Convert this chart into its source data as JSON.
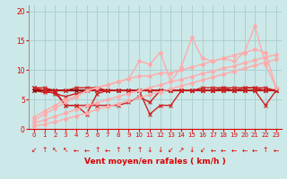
{
  "xlabel": "Vent moyen/en rafales ( km/h )",
  "background_color": "#cce8e8",
  "grid_color": "#aacccc",
  "text_color": "#dd0000",
  "x_values": [
    0,
    1,
    2,
    3,
    4,
    5,
    6,
    7,
    8,
    9,
    10,
    11,
    12,
    13,
    14,
    15,
    16,
    17,
    18,
    19,
    20,
    21,
    22,
    23
  ],
  "series": [
    {
      "y": [
        7.0,
        7.0,
        6.5,
        4.0,
        4.0,
        2.5,
        6.0,
        6.5,
        6.5,
        6.5,
        6.5,
        2.5,
        4.0,
        4.0,
        6.5,
        6.5,
        6.5,
        6.5,
        7.0,
        6.5,
        7.0,
        7.0,
        7.0,
        6.5
      ],
      "color": "#cc2222",
      "lw": 1.0,
      "marker": "x",
      "ms": 2.5
    },
    {
      "y": [
        6.5,
        6.2,
        6.2,
        4.0,
        4.0,
        4.0,
        4.0,
        4.0,
        4.0,
        4.5,
        5.5,
        4.5,
        6.5,
        6.5,
        6.5,
        6.5,
        6.5,
        6.5,
        6.5,
        6.5,
        6.5,
        6.5,
        4.0,
        6.5
      ],
      "color": "#cc2222",
      "lw": 1.0,
      "marker": "x",
      "ms": 2.5
    },
    {
      "y": [
        6.5,
        6.5,
        6.5,
        6.5,
        6.5,
        6.5,
        6.5,
        6.5,
        6.5,
        6.5,
        6.5,
        6.5,
        6.5,
        6.5,
        6.5,
        6.5,
        6.5,
        6.5,
        6.5,
        6.5,
        6.5,
        6.5,
        6.5,
        6.5
      ],
      "color": "#880000",
      "lw": 1.5,
      "marker": "x",
      "ms": 2.5
    },
    {
      "y": [
        7.0,
        6.5,
        6.0,
        5.5,
        6.0,
        6.5,
        6.5,
        6.5,
        6.5,
        6.5,
        6.5,
        6.5,
        6.5,
        6.5,
        6.5,
        6.5,
        7.0,
        7.0,
        7.0,
        7.0,
        7.0,
        7.0,
        6.5,
        6.5
      ],
      "color": "#cc2222",
      "lw": 1.0,
      "marker": "x",
      "ms": 2.5
    },
    {
      "y": [
        7.0,
        6.5,
        6.5,
        6.5,
        7.0,
        7.0,
        7.0,
        6.5,
        6.5,
        6.5,
        6.5,
        6.5,
        6.5,
        6.5,
        6.5,
        6.5,
        6.5,
        6.5,
        6.5,
        6.5,
        6.5,
        6.5,
        6.5,
        6.5
      ],
      "color": "#cc2222",
      "lw": 1.0,
      "marker": "x",
      "ms": 2.5
    },
    {
      "y": [
        0.5,
        0.8,
        1.2,
        1.7,
        2.2,
        2.7,
        3.3,
        3.8,
        4.3,
        4.8,
        5.3,
        5.8,
        6.3,
        6.8,
        7.3,
        7.8,
        8.3,
        8.8,
        9.3,
        9.8,
        10.3,
        10.8,
        11.3,
        11.8
      ],
      "color": "#ffaaaa",
      "lw": 1.0,
      "marker": "o",
      "ms": 2.5
    },
    {
      "y": [
        1.0,
        1.5,
        2.1,
        2.7,
        3.3,
        3.9,
        4.4,
        5.0,
        5.5,
        6.0,
        6.5,
        7.0,
        7.5,
        8.0,
        8.4,
        8.9,
        9.4,
        9.8,
        10.3,
        10.7,
        11.2,
        11.7,
        12.2,
        12.6
      ],
      "color": "#ffaaaa",
      "lw": 1.0,
      "marker": "o",
      "ms": 2.5
    },
    {
      "y": [
        1.5,
        2.5,
        3.5,
        4.5,
        5.5,
        6.5,
        7.0,
        7.5,
        8.0,
        8.5,
        11.5,
        11.0,
        13.0,
        8.0,
        10.5,
        15.5,
        12.0,
        11.5,
        12.0,
        11.5,
        13.0,
        17.5,
        11.0,
        7.0
      ],
      "color": "#ffaaaa",
      "lw": 1.0,
      "marker": "o",
      "ms": 2.5
    },
    {
      "y": [
        2.0,
        3.0,
        4.0,
        5.0,
        5.5,
        6.5,
        7.0,
        7.5,
        8.0,
        8.5,
        9.0,
        9.0,
        9.5,
        9.5,
        10.0,
        10.5,
        11.0,
        11.5,
        12.0,
        12.5,
        13.0,
        13.5,
        13.0,
        7.0
      ],
      "color": "#ffaaaa",
      "lw": 1.0,
      "marker": "o",
      "ms": 2.5
    }
  ],
  "ylim": [
    0,
    21
  ],
  "xlim": [
    -0.5,
    23.5
  ],
  "yticks": [
    0,
    5,
    10,
    15,
    20
  ],
  "xticks": [
    0,
    1,
    2,
    3,
    4,
    5,
    6,
    7,
    8,
    9,
    10,
    11,
    12,
    13,
    14,
    15,
    16,
    17,
    18,
    19,
    20,
    21,
    22,
    23
  ],
  "wind_arrows": [
    "↙",
    "↑",
    "↖",
    "↖",
    "←",
    "←",
    "↑",
    "←",
    "↑",
    "↑",
    "↑",
    "↓",
    "↓",
    "↙",
    "↗",
    "↓",
    "↙",
    "←",
    "←",
    "←",
    "←",
    "←",
    "↑",
    "←"
  ]
}
